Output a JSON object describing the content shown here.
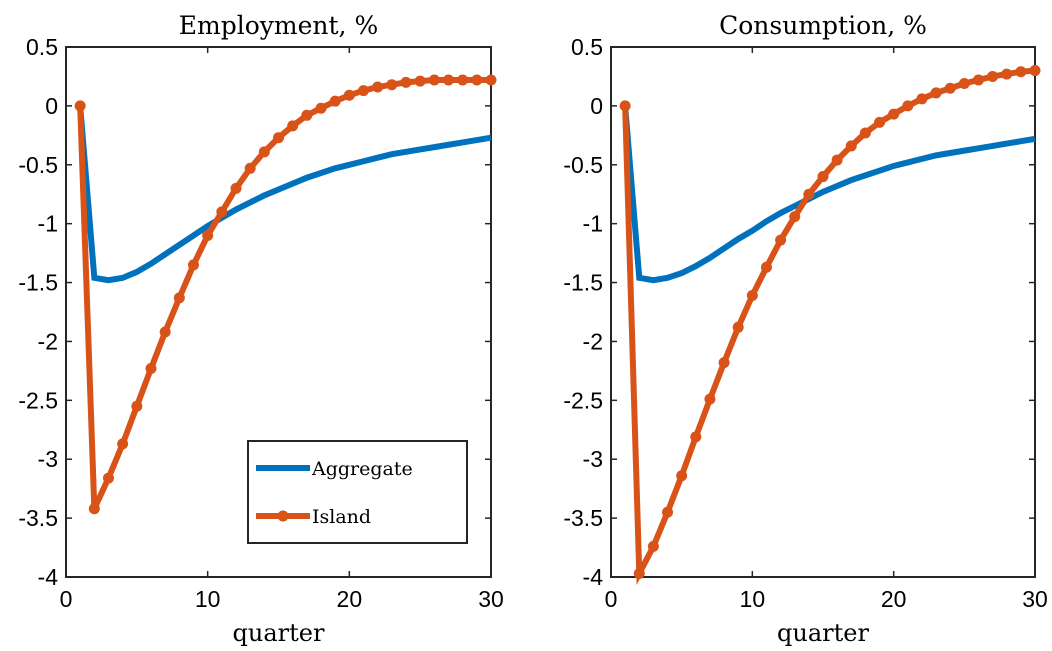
{
  "chart_data": [
    {
      "type": "line",
      "title": "Employment, %",
      "xlabel": "quarter",
      "ylabel": "",
      "xlim": [
        0,
        30
      ],
      "ylim": [
        -4,
        0.5
      ],
      "xticks": [
        0,
        10,
        20,
        30
      ],
      "xtick_labels": [
        "0",
        "10",
        "20",
        "30"
      ],
      "yticks": [
        0.5,
        0,
        -0.5,
        -1,
        -1.5,
        -2,
        -2.5,
        -3,
        -3.5,
        -4
      ],
      "ytick_labels": [
        "0.5",
        "0",
        "-0.5",
        "-1",
        "-1.5",
        "-2",
        "-2.5",
        "-3",
        "-3.5",
        "-4"
      ],
      "grid": false,
      "legend": "bottom-right",
      "x": [
        1,
        2,
        3,
        4,
        5,
        6,
        7,
        8,
        9,
        10,
        11,
        12,
        13,
        14,
        15,
        16,
        17,
        18,
        19,
        20,
        21,
        22,
        23,
        24,
        25,
        26,
        27,
        28,
        29,
        30
      ],
      "series": [
        {
          "name": "Aggregate",
          "color": "#0072bd",
          "marker": "none",
          "values": [
            0,
            -1.46,
            -1.48,
            -1.46,
            -1.41,
            -1.34,
            -1.26,
            -1.18,
            -1.1,
            -1.02,
            -0.95,
            -0.88,
            -0.82,
            -0.76,
            -0.71,
            -0.66,
            -0.61,
            -0.57,
            -0.53,
            -0.5,
            -0.47,
            -0.44,
            -0.41,
            -0.39,
            -0.37,
            -0.35,
            -0.33,
            -0.31,
            -0.29,
            -0.27
          ]
        },
        {
          "name": "Island",
          "color": "#d95319",
          "marker": "circle",
          "values": [
            0,
            -3.42,
            -3.16,
            -2.87,
            -2.55,
            -2.23,
            -1.92,
            -1.63,
            -1.35,
            -1.1,
            -0.9,
            -0.7,
            -0.53,
            -0.39,
            -0.27,
            -0.17,
            -0.08,
            -0.02,
            0.04,
            0.09,
            0.13,
            0.16,
            0.18,
            0.2,
            0.21,
            0.22,
            0.22,
            0.22,
            0.22,
            0.22
          ]
        }
      ]
    },
    {
      "type": "line",
      "title": "Consumption, %",
      "xlabel": "quarter",
      "ylabel": "",
      "xlim": [
        0,
        30
      ],
      "ylim": [
        -4,
        0.5
      ],
      "xticks": [
        0,
        10,
        20,
        30
      ],
      "xtick_labels": [
        "0",
        "10",
        "20",
        "30"
      ],
      "yticks": [
        0.5,
        0,
        -0.5,
        -1,
        -1.5,
        -2,
        -2.5,
        -3,
        -3.5,
        -4
      ],
      "ytick_labels": [
        "0.5",
        "0",
        "-0.5",
        "-1",
        "-1.5",
        "-2",
        "-2.5",
        "-3",
        "-3.5",
        "-4"
      ],
      "grid": false,
      "legend": "none",
      "x": [
        1,
        2,
        3,
        4,
        5,
        6,
        7,
        8,
        9,
        10,
        11,
        12,
        13,
        14,
        15,
        16,
        17,
        18,
        19,
        20,
        21,
        22,
        23,
        24,
        25,
        26,
        27,
        28,
        29,
        30
      ],
      "series": [
        {
          "name": "Aggregate",
          "color": "#0072bd",
          "marker": "none",
          "values": [
            0,
            -1.46,
            -1.48,
            -1.46,
            -1.42,
            -1.36,
            -1.29,
            -1.21,
            -1.13,
            -1.06,
            -0.98,
            -0.91,
            -0.85,
            -0.79,
            -0.73,
            -0.68,
            -0.63,
            -0.59,
            -0.55,
            -0.51,
            -0.48,
            -0.45,
            -0.42,
            -0.4,
            -0.38,
            -0.36,
            -0.34,
            -0.32,
            -0.3,
            -0.28
          ]
        },
        {
          "name": "Island",
          "color": "#d95319",
          "marker": "circle",
          "values": [
            0,
            -3.97,
            -3.74,
            -3.45,
            -3.14,
            -2.81,
            -2.49,
            -2.18,
            -1.88,
            -1.61,
            -1.37,
            -1.14,
            -0.94,
            -0.75,
            -0.6,
            -0.46,
            -0.34,
            -0.23,
            -0.14,
            -0.07,
            0.0,
            0.06,
            0.11,
            0.15,
            0.19,
            0.22,
            0.25,
            0.27,
            0.29,
            0.3
          ]
        }
      ]
    }
  ]
}
